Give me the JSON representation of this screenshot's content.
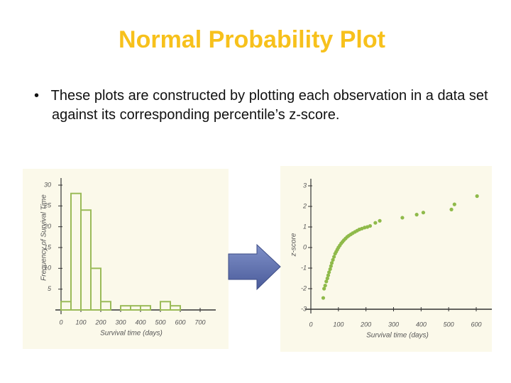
{
  "title": "Normal Probability Plot",
  "bullet": "These plots are constructed by plotting each observation in a data set against its corresponding percentile’s z-score.",
  "chart_data": [
    {
      "type": "histogram",
      "xlabel": "Survival time (days)",
      "ylabel": "Frequency of Survival Time",
      "bins": [
        0,
        50,
        100,
        150,
        200,
        250,
        300,
        350,
        400,
        450,
        500,
        550,
        600,
        650,
        700
      ],
      "values": [
        2,
        28,
        24,
        10,
        2,
        0,
        1,
        1,
        1,
        0,
        2,
        1,
        0,
        0
      ],
      "color": "#9bbb59",
      "xlim": [
        0,
        700
      ],
      "ylim": [
        0,
        30
      ],
      "xticks": [
        0,
        100,
        200,
        300,
        400,
        500,
        600,
        700
      ],
      "yticks": [
        5,
        10,
        15,
        20,
        25,
        30
      ]
    },
    {
      "type": "scatter",
      "xlabel": "Survival time (days)",
      "ylabel": "z-score",
      "x": [
        45,
        48,
        52,
        56,
        60,
        63,
        66,
        70,
        73,
        76,
        80,
        84,
        88,
        92,
        96,
        100,
        105,
        110,
        115,
        120,
        126,
        132,
        138,
        145,
        152,
        160,
        168,
        176,
        185,
        195,
        205,
        215,
        234,
        250,
        332,
        384,
        408,
        510,
        521,
        603
      ],
      "y": [
        -2.45,
        -2.0,
        -1.85,
        -1.65,
        -1.5,
        -1.35,
        -1.2,
        -1.05,
        -0.9,
        -0.75,
        -0.6,
        -0.45,
        -0.3,
        -0.2,
        -0.1,
        0.0,
        0.1,
        0.2,
        0.28,
        0.36,
        0.44,
        0.52,
        0.58,
        0.64,
        0.7,
        0.76,
        0.82,
        0.88,
        0.92,
        0.97,
        1.0,
        1.05,
        1.2,
        1.3,
        1.45,
        1.6,
        1.7,
        1.85,
        2.1,
        2.5
      ],
      "color": "#8fba4a",
      "xlim": [
        0,
        600
      ],
      "ylim": [
        -3,
        3
      ],
      "xticks": [
        0,
        100,
        200,
        300,
        400,
        500,
        600
      ],
      "yticks": [
        -3,
        -2,
        -1,
        0,
        1,
        2,
        3
      ]
    }
  ]
}
